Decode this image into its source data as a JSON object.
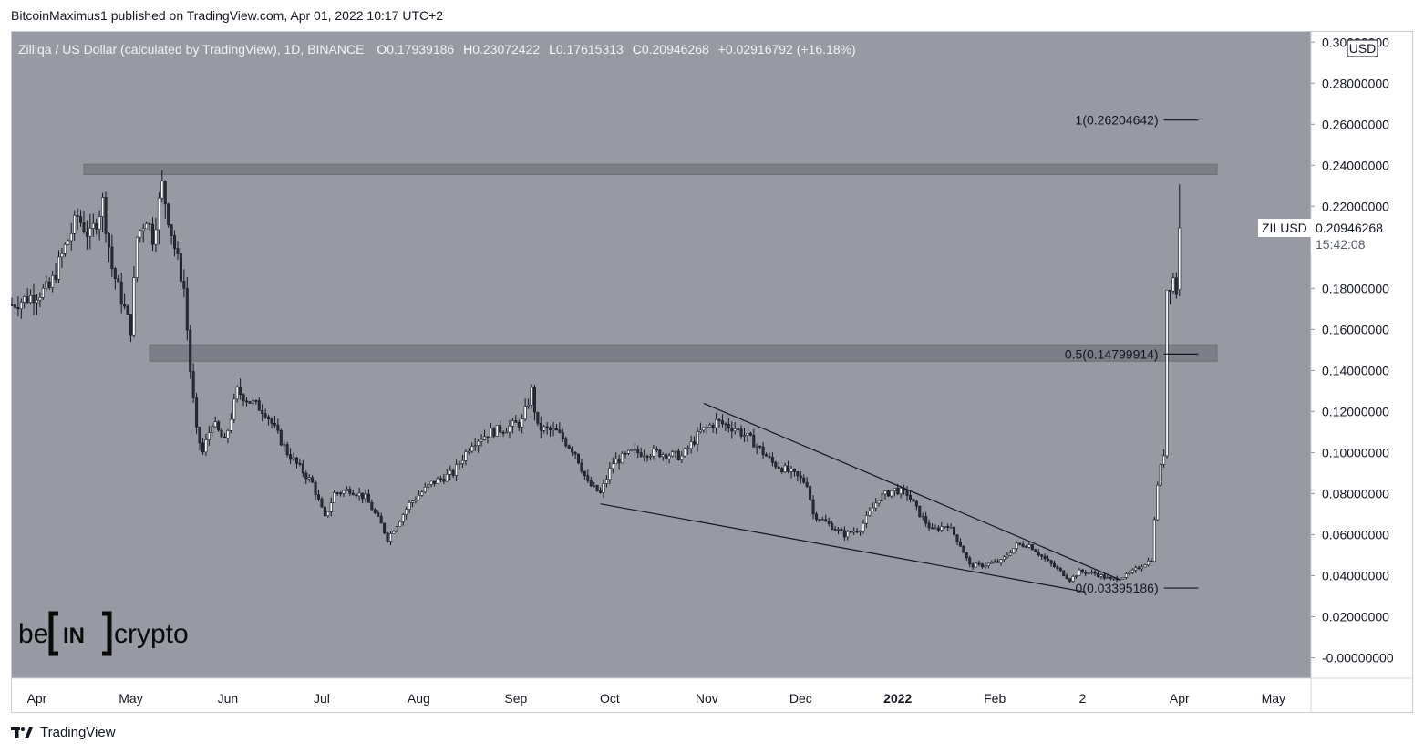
{
  "header": {
    "published_by": "BitcoinMaximus1 published on TradingView.com, Apr 01, 2022 10:17 UTC+2"
  },
  "legend": {
    "title": "Zilliqa / US Dollar (calculated by TradingView), 1D, BINANCE",
    "open_label": "O",
    "open": "0.17939186",
    "high_label": "H",
    "high": "0.23072422",
    "low_label": "L",
    "low": "0.17615313",
    "close_label": "C",
    "close": "0.20946268",
    "change": "+0.02916792 (+16.18%)"
  },
  "currency_badge": "USD",
  "last_price": {
    "symbol": "ZILUSD",
    "value": "0.20946268",
    "countdown": "15:42:08"
  },
  "watermark": {
    "left": "be",
    "middle": "IN",
    "right": "crypto"
  },
  "footer": {
    "brand": "TradingView"
  },
  "colors": {
    "plot_bg": "#979aa2",
    "candle": "#ffffff",
    "wick": "#131722",
    "zone": "#7c7f87",
    "line": "#131722"
  },
  "chart_data": {
    "type": "candlestick",
    "symbol": "ZILUSD",
    "timeframe": "1D",
    "exchange": "BINANCE",
    "ylim": [
      -0.01,
      0.305
    ],
    "y_ticks": [
      "0.30000000",
      "0.28000000",
      "0.26000000",
      "0.24000000",
      "0.22000000",
      "0.18000000",
      "0.16000000",
      "0.14000000",
      "0.12000000",
      "0.10000000",
      "0.08000000",
      "0.06000000",
      "0.04000000",
      "0.02000000",
      "-0.00000000"
    ],
    "y_tick_values": [
      0.3,
      0.28,
      0.26,
      0.24,
      0.22,
      0.18,
      0.16,
      0.14,
      0.12,
      0.1,
      0.08,
      0.06,
      0.04,
      0.02,
      0.0
    ],
    "x_ticks": [
      {
        "label": "Apr",
        "date": "2021-04-01"
      },
      {
        "label": "May",
        "date": "2021-05-01"
      },
      {
        "label": "Jun",
        "date": "2021-06-01"
      },
      {
        "label": "Jul",
        "date": "2021-07-01"
      },
      {
        "label": "Aug",
        "date": "2021-08-01"
      },
      {
        "label": "Sep",
        "date": "2021-09-01"
      },
      {
        "label": "Oct",
        "date": "2021-10-01"
      },
      {
        "label": "Nov",
        "date": "2021-11-01"
      },
      {
        "label": "Dec",
        "date": "2021-12-01"
      },
      {
        "label": "2022",
        "date": "2022-01-01",
        "bold": true
      },
      {
        "label": "Feb",
        "date": "2022-02-01"
      },
      {
        "label": "2",
        "date": "2022-03-01"
      },
      {
        "label": "Apr",
        "date": "2022-04-01"
      },
      {
        "label": "May",
        "date": "2022-05-01"
      }
    ],
    "close_path": [
      {
        "date": "2021-03-24",
        "close": 0.172
      },
      {
        "date": "2021-04-05",
        "close": 0.18
      },
      {
        "date": "2021-04-10",
        "close": 0.2
      },
      {
        "date": "2021-04-14",
        "close": 0.215
      },
      {
        "date": "2021-04-18",
        "close": 0.205
      },
      {
        "date": "2021-04-22",
        "close": 0.222
      },
      {
        "date": "2021-04-25",
        "close": 0.19
      },
      {
        "date": "2021-05-01",
        "close": 0.16
      },
      {
        "date": "2021-05-03",
        "close": 0.205
      },
      {
        "date": "2021-05-06",
        "close": 0.215
      },
      {
        "date": "2021-05-08",
        "close": 0.205
      },
      {
        "date": "2021-05-11",
        "close": 0.23
      },
      {
        "date": "2021-05-15",
        "close": 0.2
      },
      {
        "date": "2021-05-18",
        "close": 0.18
      },
      {
        "date": "2021-05-20",
        "close": 0.14
      },
      {
        "date": "2021-05-22",
        "close": 0.11
      },
      {
        "date": "2021-05-24",
        "close": 0.1
      },
      {
        "date": "2021-05-27",
        "close": 0.115
      },
      {
        "date": "2021-05-31",
        "close": 0.105
      },
      {
        "date": "2021-06-04",
        "close": 0.13
      },
      {
        "date": "2021-06-08",
        "close": 0.125
      },
      {
        "date": "2021-06-13",
        "close": 0.12
      },
      {
        "date": "2021-06-20",
        "close": 0.1
      },
      {
        "date": "2021-06-28",
        "close": 0.085
      },
      {
        "date": "2021-07-02",
        "close": 0.068
      },
      {
        "date": "2021-07-05",
        "close": 0.08
      },
      {
        "date": "2021-07-10",
        "close": 0.082
      },
      {
        "date": "2021-07-15",
        "close": 0.078
      },
      {
        "date": "2021-07-20",
        "close": 0.065
      },
      {
        "date": "2021-07-22",
        "close": 0.058
      },
      {
        "date": "2021-07-25",
        "close": 0.065
      },
      {
        "date": "2021-07-29",
        "close": 0.075
      },
      {
        "date": "2021-08-05",
        "close": 0.085
      },
      {
        "date": "2021-08-12",
        "close": 0.09
      },
      {
        "date": "2021-08-18",
        "close": 0.105
      },
      {
        "date": "2021-08-24",
        "close": 0.11
      },
      {
        "date": "2021-08-29",
        "close": 0.112
      },
      {
        "date": "2021-09-03",
        "close": 0.115
      },
      {
        "date": "2021-09-06",
        "close": 0.13
      },
      {
        "date": "2021-09-08",
        "close": 0.112
      },
      {
        "date": "2021-09-14",
        "close": 0.11
      },
      {
        "date": "2021-09-20",
        "close": 0.1
      },
      {
        "date": "2021-09-24",
        "close": 0.085
      },
      {
        "date": "2021-09-28",
        "close": 0.08
      },
      {
        "date": "2021-10-02",
        "close": 0.095
      },
      {
        "date": "2021-10-08",
        "close": 0.1
      },
      {
        "date": "2021-10-16",
        "close": 0.1
      },
      {
        "date": "2021-10-24",
        "close": 0.098
      },
      {
        "date": "2021-10-30",
        "close": 0.11
      },
      {
        "date": "2021-11-04",
        "close": 0.115
      },
      {
        "date": "2021-11-10",
        "close": 0.112
      },
      {
        "date": "2021-11-16",
        "close": 0.105
      },
      {
        "date": "2021-11-22",
        "close": 0.095
      },
      {
        "date": "2021-11-28",
        "close": 0.09
      },
      {
        "date": "2021-12-03",
        "close": 0.085
      },
      {
        "date": "2021-12-05",
        "close": 0.07
      },
      {
        "date": "2021-12-10",
        "close": 0.065
      },
      {
        "date": "2021-12-15",
        "close": 0.06
      },
      {
        "date": "2021-12-20",
        "close": 0.063
      },
      {
        "date": "2021-12-26",
        "close": 0.078
      },
      {
        "date": "2021-12-31",
        "close": 0.082
      },
      {
        "date": "2022-01-04",
        "close": 0.08
      },
      {
        "date": "2022-01-08",
        "close": 0.07
      },
      {
        "date": "2022-01-12",
        "close": 0.062
      },
      {
        "date": "2022-01-17",
        "close": 0.065
      },
      {
        "date": "2022-01-21",
        "close": 0.055
      },
      {
        "date": "2022-01-24",
        "close": 0.045
      },
      {
        "date": "2022-01-28",
        "close": 0.045
      },
      {
        "date": "2022-02-03",
        "close": 0.047
      },
      {
        "date": "2022-02-08",
        "close": 0.055
      },
      {
        "date": "2022-02-12",
        "close": 0.055
      },
      {
        "date": "2022-02-17",
        "close": 0.048
      },
      {
        "date": "2022-02-22",
        "close": 0.042
      },
      {
        "date": "2022-02-25",
        "close": 0.038
      },
      {
        "date": "2022-02-28",
        "close": 0.042
      },
      {
        "date": "2022-03-05",
        "close": 0.041
      },
      {
        "date": "2022-03-10",
        "close": 0.038
      },
      {
        "date": "2022-03-15",
        "close": 0.04
      },
      {
        "date": "2022-03-20",
        "close": 0.045
      },
      {
        "date": "2022-03-23",
        "close": 0.048
      },
      {
        "date": "2022-03-25",
        "close": 0.085
      },
      {
        "date": "2022-03-27",
        "close": 0.1
      },
      {
        "date": "2022-03-28",
        "close": 0.18
      },
      {
        "date": "2022-03-30",
        "close": 0.185
      },
      {
        "date": "2022-03-31",
        "close": 0.179
      },
      {
        "date": "2022-04-01",
        "close": 0.2095
      }
    ],
    "last_candle": {
      "date": "2022-04-01",
      "open": 0.17939186,
      "high": 0.23072422,
      "low": 0.17615313,
      "close": 0.20946268,
      "change": 0.02916792,
      "change_pct": 16.18
    },
    "zones": [
      {
        "from_date": "2021-04-16",
        "to_date": "2022-04-13",
        "low": 0.2355,
        "high": 0.2405
      },
      {
        "from_date": "2021-05-07",
        "to_date": "2022-04-13",
        "low": 0.1445,
        "high": 0.1525
      }
    ],
    "fibonacci": {
      "from_date": "2022-03-27",
      "to_date": "2022-04-07",
      "levels": [
        {
          "label": "1(0.26204642)",
          "value": 0.26204642
        },
        {
          "label": "0.5(0.14799914)",
          "value": 0.14799914
        },
        {
          "label": "0(0.03395186)",
          "value": 0.03395186
        }
      ]
    },
    "wedge": {
      "upper": [
        {
          "date": "2021-10-31",
          "value": 0.124
        },
        {
          "date": "2022-03-13",
          "value": 0.038
        }
      ],
      "lower": [
        {
          "date": "2021-09-28",
          "value": 0.075
        },
        {
          "date": "2022-03-02",
          "value": 0.032
        }
      ]
    }
  }
}
